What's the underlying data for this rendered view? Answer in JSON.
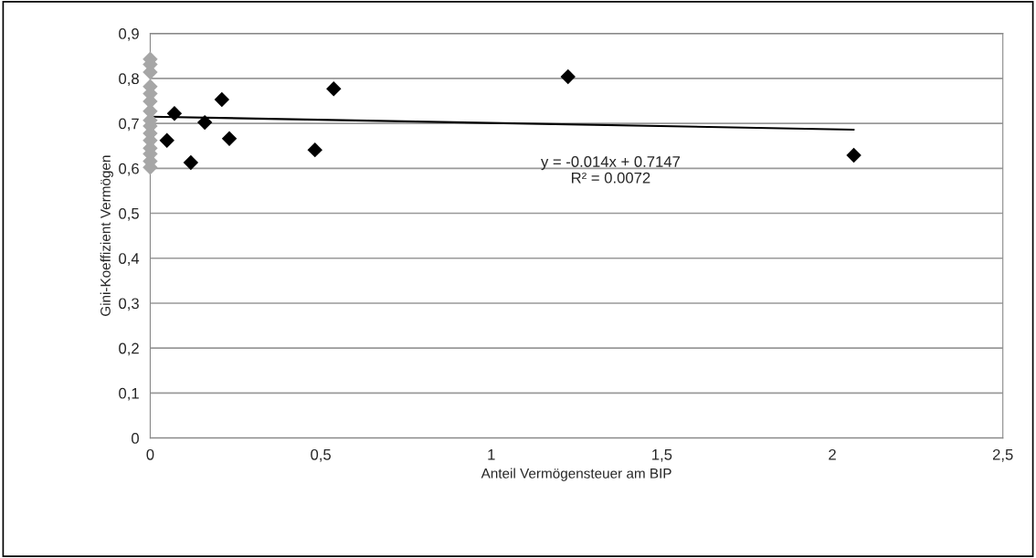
{
  "chart_data": {
    "type": "scatter",
    "xlabel": "Anteil Vermögensteuer am BIP",
    "ylabel": "Gini-Koeffizient Vermögen",
    "xlim": [
      0,
      2.5
    ],
    "xticks": [
      {
        "value": 0,
        "label": "0"
      },
      {
        "value": 0.5,
        "label": "0,5"
      },
      {
        "value": 1,
        "label": "1"
      },
      {
        "value": 1.5,
        "label": "1,5"
      },
      {
        "value": 2,
        "label": "2"
      },
      {
        "value": 2.5,
        "label": "2,5"
      }
    ],
    "ylim": [
      0,
      0.9
    ],
    "yticks": [
      {
        "value": 0,
        "label": "0"
      },
      {
        "value": 0.1,
        "label": "0,1"
      },
      {
        "value": 0.2,
        "label": "0,2"
      },
      {
        "value": 0.3,
        "label": "0,3"
      },
      {
        "value": 0.4,
        "label": "0,4"
      },
      {
        "value": 0.5,
        "label": "0,5"
      },
      {
        "value": 0.6,
        "label": "0,6"
      },
      {
        "value": 0.7,
        "label": "0,7"
      },
      {
        "value": 0.8,
        "label": "0,8"
      },
      {
        "value": 0.9,
        "label": "0,9"
      }
    ],
    "grid": "y",
    "legend": false,
    "marker": "diamond",
    "series": [
      {
        "color": "#a6a6a6",
        "x": [
          0,
          0,
          0,
          0,
          0,
          0,
          0,
          0,
          0,
          0,
          0,
          0,
          0,
          0,
          0
        ],
        "values": [
          0.843,
          0.831,
          0.814,
          0.782,
          0.766,
          0.749,
          0.727,
          0.707,
          0.694,
          0.678,
          0.662,
          0.645,
          0.632,
          0.616,
          0.602
        ]
      },
      {
        "color": "#000000",
        "x": [
          0.049,
          0.071,
          0.119,
          0.16,
          0.21,
          0.232,
          0.483,
          0.538,
          1.225,
          2.063
        ],
        "values": [
          0.662,
          0.722,
          0.613,
          0.702,
          0.753,
          0.666,
          0.641,
          0.777,
          0.804,
          0.629
        ]
      },
      {
        "type": "line",
        "color": "#000000",
        "marker": "none",
        "x": [
          0,
          2.063
        ],
        "values": [
          0.715,
          0.686
        ]
      }
    ],
    "annotations": [
      "y = -0.014x + 0.7147",
      "R² = 0.0072"
    ]
  }
}
